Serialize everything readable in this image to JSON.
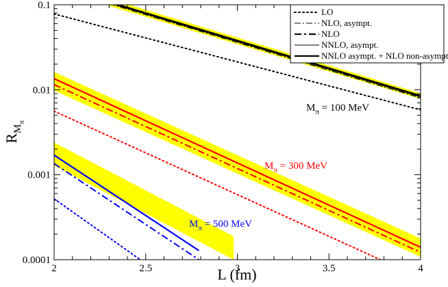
{
  "chart_data": {
    "type": "line",
    "title": "",
    "xlabel": "L (fm)",
    "ylabel_main": "R",
    "ylabel_sub_main": "M",
    "ylabel_sub_sub": "π",
    "xlim": [
      2,
      4
    ],
    "ylim": [
      0.0001,
      0.1
    ],
    "yscale": "log",
    "x_ticks": [
      2,
      2.5,
      3,
      3.5,
      4
    ],
    "x_tick_labels": [
      "2",
      "2.5",
      "3",
      "3.5",
      "4"
    ],
    "y_ticks": [
      0.0001,
      0.001,
      0.01,
      0.1
    ],
    "y_tick_labels": [
      "0.0001",
      "0.001",
      "0.01",
      "0.1"
    ],
    "grid": false,
    "legend_position": "top-right",
    "legend": [
      {
        "label": "LO",
        "style": "dotted"
      },
      {
        "label": "NLO, asympt.",
        "style": "dashdot-thin"
      },
      {
        "label": "NLO",
        "style": "dashdot-thick"
      },
      {
        "label": "NNLO, asympt.",
        "style": "solid-thin"
      },
      {
        "label": "NNLO asympt. + NLO non-asympt.",
        "style": "solid-thick"
      }
    ],
    "groups": [
      {
        "annotation_main": "M",
        "annotation_sub": "π",
        "annotation_value": " = 100 MeV",
        "color": "#000000",
        "band": {
          "x": [
            2.3,
            4
          ],
          "lower": [
            0.097,
            0.0078
          ],
          "upper": [
            0.118,
            0.0091
          ]
        },
        "series": [
          {
            "name": "LO",
            "style": "dotted",
            "x": [
              2,
              4
            ],
            "y": [
              0.078,
              0.0058
            ]
          },
          {
            "name": "NLO, asympt.",
            "style": "dashdot-thin",
            "x": [
              2.3,
              4
            ],
            "y": [
              0.103,
              0.008
            ]
          },
          {
            "name": "NLO",
            "style": "dashdot-thick",
            "x": [
              2.3,
              4
            ],
            "y": [
              0.108,
              0.0083
            ]
          },
          {
            "name": "NNLO, asympt.",
            "style": "solid-thin",
            "x": [
              2.3,
              4
            ],
            "y": [
              0.105,
              0.0082
            ]
          },
          {
            "name": "NNLO asympt. + NLO non-asympt.",
            "style": "solid-thick",
            "x": [
              2.3,
              4
            ],
            "y": [
              0.108,
              0.0085
            ]
          }
        ]
      },
      {
        "annotation_main": "M",
        "annotation_sub": "π",
        "annotation_value": " = 300 MeV",
        "color": "#ff0000",
        "band": {
          "x": [
            2,
            4
          ],
          "lower": [
            0.0098,
            0.000108
          ],
          "upper": [
            0.0162,
            0.000178
          ]
        },
        "series": [
          {
            "name": "LO",
            "style": "dotted",
            "x": [
              2,
              3.78
            ],
            "y": [
              0.0056,
              0.0001
            ]
          },
          {
            "name": "NLO",
            "style": "dashdot-thick",
            "x": [
              2,
              4
            ],
            "y": [
              0.0115,
              0.000122
            ]
          },
          {
            "name": "NNLO asympt. + NLO non-asympt.",
            "style": "solid-thick",
            "x": [
              2,
              4
            ],
            "y": [
              0.0135,
              0.00014
            ]
          }
        ]
      },
      {
        "annotation_main": "M",
        "annotation_sub": "π",
        "annotation_value": " = 500 MeV",
        "color": "#0000ff",
        "band": {
          "x": [
            2,
            2.98
          ],
          "lower": [
            0.00128,
            0.0001
          ],
          "upper": [
            0.0024,
            0.000188
          ]
        },
        "series": [
          {
            "name": "LO",
            "style": "dotted",
            "x": [
              2,
              2.47
            ],
            "y": [
              0.00052,
              0.0001
            ]
          },
          {
            "name": "NLO",
            "style": "dashdot-thick",
            "x": [
              2,
              2.79
            ],
            "y": [
              0.00135,
              0.0001
            ]
          },
          {
            "name": "NNLO asympt. + NLO non-asympt.",
            "style": "solid-thick",
            "x": [
              2,
              2.79
            ],
            "y": [
              0.0017,
              0.000128
            ]
          }
        ]
      }
    ]
  },
  "colors": {
    "band": "#ffff00",
    "axis": "#000000"
  }
}
